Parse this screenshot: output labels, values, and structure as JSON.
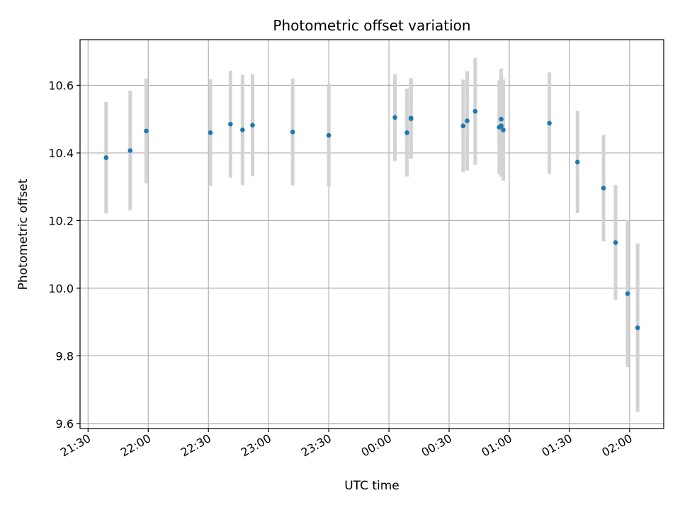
{
  "chart_data": {
    "type": "scatter",
    "title": "Photometric offset variation",
    "xlabel": "UTC time",
    "ylabel": "Photometric offset",
    "grid": true,
    "xlim": [
      "21:26",
      "02:17"
    ],
    "ylim": [
      9.585,
      10.735
    ],
    "x_ticks": [
      "21:30",
      "22:00",
      "22:30",
      "23:00",
      "23:30",
      "00:00",
      "00:30",
      "01:00",
      "01:30",
      "02:00"
    ],
    "y_ticks": [
      "9.6",
      "9.8",
      "10.0",
      "10.2",
      "10.4",
      "10.6"
    ],
    "colors": {
      "points": "#1f77b4",
      "error_bars": "#d3d3d3",
      "grid": "#b0b0b0"
    },
    "series": [
      {
        "x": [
          "21:39",
          "21:51",
          "21:59",
          "22:31",
          "22:41",
          "22:47",
          "22:52",
          "23:12",
          "23:30",
          "00:03",
          "00:09",
          "00:11",
          "00:11",
          "00:37",
          "00:39",
          "00:43",
          "00:55",
          "00:56",
          "00:56",
          "00:57",
          "01:20",
          "01:34",
          "01:47",
          "01:53",
          "01:59",
          "02:04"
        ],
        "y": [
          10.386,
          10.407,
          10.465,
          10.46,
          10.485,
          10.468,
          10.482,
          10.462,
          10.452,
          10.505,
          10.46,
          10.503,
          10.501,
          10.48,
          10.495,
          10.523,
          10.476,
          10.5,
          10.48,
          10.468,
          10.488,
          10.373,
          10.296,
          10.135,
          9.984,
          9.883
        ],
        "yerr": [
          0.165,
          0.177,
          0.155,
          0.158,
          0.158,
          0.163,
          0.151,
          0.158,
          0.152,
          0.128,
          0.13,
          0.118,
          0.118,
          0.137,
          0.147,
          0.158,
          0.139,
          0.15,
          0.15,
          0.15,
          0.15,
          0.151,
          0.157,
          0.17,
          0.217,
          0.249
        ]
      }
    ]
  }
}
